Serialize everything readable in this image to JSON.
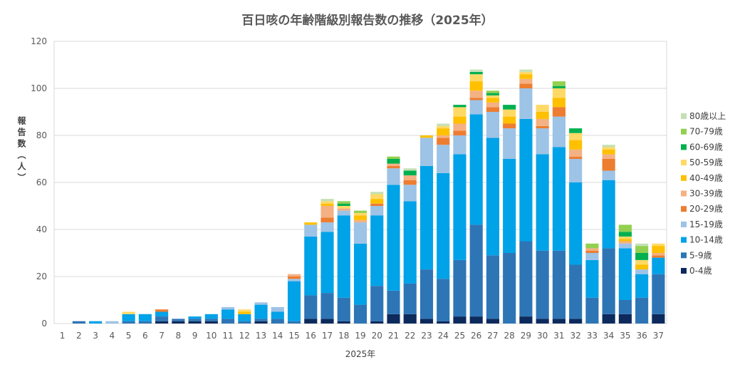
{
  "chart_data": {
    "type": "bar",
    "stacked": true,
    "title": "百日咳の年齢階級別報告数の推移（2025年）",
    "xlabel": "2025年",
    "ylabel": "報告数（人）",
    "ylim": [
      0,
      120
    ],
    "yticks": [
      0,
      20,
      40,
      60,
      80,
      100,
      120
    ],
    "grid": true,
    "legend_position": "right",
    "categories": [
      "1",
      "2",
      "3",
      "4",
      "5",
      "6",
      "7",
      "8",
      "9",
      "10",
      "11",
      "12",
      "13",
      "14",
      "15",
      "16",
      "17",
      "18",
      "19",
      "20",
      "21",
      "22",
      "23",
      "24",
      "25",
      "26",
      "27",
      "28",
      "29",
      "30",
      "31",
      "32",
      "33",
      "34",
      "35",
      "36",
      "37"
    ],
    "series": [
      {
        "name": "0-4歳",
        "color": "#0d2a5c",
        "values": [
          0,
          0,
          0,
          0,
          0,
          0,
          1,
          1,
          1,
          1,
          0,
          0,
          1,
          0,
          0,
          2,
          2,
          1,
          0,
          1,
          4,
          4,
          2,
          1,
          3,
          3,
          2,
          0,
          3,
          2,
          2,
          2,
          0,
          4,
          4,
          0,
          4
        ]
      },
      {
        "name": "5-9歳",
        "color": "#2e75b6",
        "values": [
          0,
          1,
          0,
          0,
          1,
          1,
          2,
          1,
          1,
          1,
          2,
          1,
          1,
          2,
          1,
          10,
          11,
          10,
          8,
          15,
          10,
          13,
          21,
          18,
          24,
          39,
          27,
          30,
          32,
          29,
          29,
          23,
          11,
          28,
          6,
          11,
          17
        ]
      },
      {
        "name": "10-14歳",
        "color": "#00a2e8",
        "values": [
          0,
          0,
          1,
          0,
          3,
          3,
          2,
          0,
          1,
          2,
          4,
          3,
          6,
          3,
          17,
          25,
          26,
          35,
          26,
          30,
          45,
          35,
          44,
          45,
          45,
          47,
          50,
          40,
          52,
          41,
          44,
          35,
          16,
          29,
          22,
          10,
          7
        ]
      },
      {
        "name": "15-19歳",
        "color": "#9dc3e6",
        "values": [
          0,
          0,
          0,
          1,
          0,
          0,
          0,
          0,
          0,
          0,
          1,
          0,
          1,
          2,
          1,
          5,
          4,
          2,
          9,
          4,
          7,
          7,
          12,
          12,
          8,
          6,
          11,
          13,
          13,
          11,
          13,
          10,
          3,
          4,
          2,
          2,
          0
        ]
      },
      {
        "name": "20-29歳",
        "color": "#ed7d31",
        "values": [
          0,
          0,
          0,
          0,
          0,
          0,
          1,
          0,
          0,
          0,
          0,
          0,
          0,
          0,
          1,
          0,
          2,
          0,
          0,
          1,
          1,
          2,
          0,
          3,
          2,
          1,
          2,
          2,
          2,
          1,
          4,
          1,
          1,
          5,
          0,
          0,
          1
        ]
      },
      {
        "name": "30-39歳",
        "color": "#f4b183",
        "values": [
          0,
          0,
          0,
          0,
          0,
          0,
          0,
          0,
          0,
          0,
          0,
          0,
          0,
          0,
          1,
          0,
          5,
          1,
          1,
          0,
          1,
          2,
          0,
          1,
          3,
          3,
          2,
          0,
          2,
          3,
          0,
          3,
          1,
          2,
          1,
          0,
          1
        ]
      },
      {
        "name": "40-49歳",
        "color": "#ffc000",
        "values": [
          0,
          0,
          0,
          0,
          0,
          0,
          0,
          0,
          0,
          0,
          0,
          1,
          0,
          0,
          0,
          1,
          1,
          0,
          2,
          2,
          0,
          0,
          1,
          3,
          3,
          4,
          2,
          3,
          2,
          3,
          4,
          4,
          0,
          2,
          1,
          2,
          3
        ]
      },
      {
        "name": "50-59歳",
        "color": "#ffd966",
        "values": [
          0,
          0,
          0,
          0,
          1,
          0,
          0,
          0,
          0,
          0,
          0,
          1,
          0,
          0,
          0,
          0,
          1,
          1,
          1,
          2,
          0,
          0,
          0,
          1,
          4,
          3,
          1,
          3,
          1,
          3,
          4,
          3,
          0,
          1,
          1,
          2,
          1
        ]
      },
      {
        "name": "60-69歳",
        "color": "#00b050",
        "values": [
          0,
          0,
          0,
          0,
          0,
          0,
          0,
          0,
          0,
          0,
          0,
          0,
          0,
          0,
          0,
          0,
          0,
          1,
          0,
          0,
          2,
          2,
          0,
          0,
          1,
          1,
          1,
          2,
          0,
          0,
          1,
          2,
          0,
          0,
          2,
          3,
          0
        ]
      },
      {
        "name": "70-79歳",
        "color": "#92d050",
        "values": [
          0,
          0,
          0,
          0,
          0,
          0,
          0,
          0,
          0,
          0,
          0,
          0,
          0,
          0,
          0,
          0,
          0,
          1,
          1,
          0,
          1,
          0,
          0,
          0,
          0,
          0,
          1,
          0,
          0,
          0,
          2,
          0,
          2,
          0,
          3,
          3,
          0
        ]
      },
      {
        "name": "80歳以上",
        "color": "#c5e0b4",
        "values": [
          0,
          0,
          0,
          0,
          0,
          0,
          0,
          0,
          0,
          0,
          0,
          0,
          0,
          0,
          0,
          0,
          1,
          0,
          0,
          1,
          0,
          1,
          0,
          1,
          0,
          1,
          0,
          0,
          1,
          0,
          0,
          0,
          0,
          1,
          0,
          1,
          0
        ]
      }
    ]
  }
}
